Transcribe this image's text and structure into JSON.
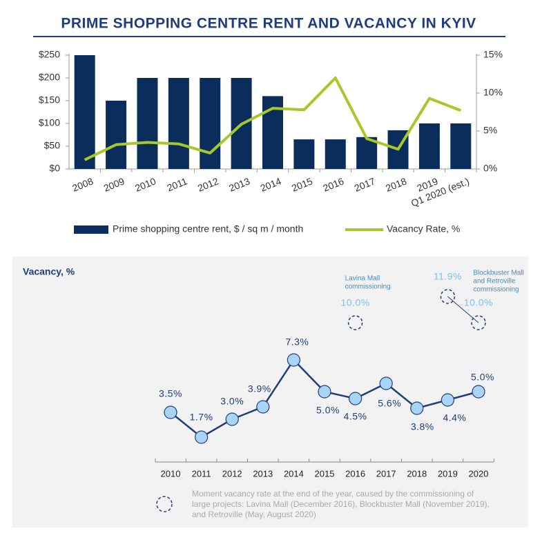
{
  "chart_data": [
    {
      "type": "combo",
      "title": "PRIME SHOPPING CENTRE RENT AND VACANCY IN KYIV",
      "categories": [
        "2008",
        "2009",
        "2010",
        "2011",
        "2012",
        "2013",
        "2014",
        "2015",
        "2016",
        "2017",
        "2018",
        "2019",
        "Q1 2020 (est.)"
      ],
      "series": [
        {
          "name": "Prime shopping centre rent, $ / sq m / month",
          "type": "bar",
          "color": "#0b2d5c",
          "values": [
            250,
            150,
            200,
            200,
            200,
            200,
            160,
            65,
            65,
            70,
            85,
            100,
            100
          ]
        },
        {
          "name": "Vacancy Rate, %",
          "type": "line",
          "axis": "y2",
          "color": "#a6c82b",
          "values": [
            1.2,
            3.2,
            3.5,
            3.3,
            2.1,
            5.9,
            8.0,
            7.8,
            12.0,
            4.0,
            2.6,
            9.3,
            7.7
          ]
        }
      ],
      "ylim": [
        0,
        250
      ],
      "yticks": [
        {
          "value": 0,
          "label": "$0"
        },
        {
          "value": 50,
          "label": "$50"
        },
        {
          "value": 100,
          "label": "$100"
        },
        {
          "value": 150,
          "label": "$150"
        },
        {
          "value": 200,
          "label": "$200"
        },
        {
          "value": 250,
          "label": "$250"
        }
      ],
      "y2lim": [
        0,
        15
      ],
      "y2ticks": [
        {
          "value": 0,
          "label": "0%"
        },
        {
          "value": 5,
          "label": "5%"
        },
        {
          "value": 10,
          "label": "10%"
        },
        {
          "value": 15,
          "label": "15%"
        }
      ],
      "legend": "bottom"
    },
    {
      "type": "line",
      "title": "Vacancy, %",
      "x": [
        2010,
        2011,
        2012,
        2013,
        2014,
        2015,
        2016,
        2017,
        2018,
        2019,
        2020
      ],
      "series": [
        {
          "name": "Vacancy",
          "color": "#1f3d7a",
          "values": [
            3.5,
            1.7,
            3.0,
            3.9,
            7.3,
            5.0,
            4.5,
            5.6,
            3.8,
            4.4,
            5.0
          ],
          "value_labels": [
            "3.5%",
            "1.7%",
            "3.0%",
            "3.9%",
            "7.3%",
            "5.0%",
            "4.5%",
            "5.6%",
            "3.8%",
            "4.4%",
            "5.0%"
          ]
        },
        {
          "name": "Moment vacancy",
          "color": "#7ec0ea",
          "values": [
            null,
            null,
            null,
            null,
            null,
            null,
            10.0,
            null,
            null,
            11.9,
            10.0
          ],
          "value_labels": [
            null,
            null,
            null,
            null,
            null,
            null,
            "10.0%",
            null,
            null,
            "11.9%",
            "10.0%"
          ]
        }
      ],
      "annotations": [
        {
          "x": 2016,
          "lines": [
            "Lavina Mall",
            "commissioning"
          ]
        },
        {
          "x": 2019,
          "lines": [
            "Blockbuster Mall",
            "and Retroville",
            "commissioning"
          ]
        }
      ],
      "note": [
        "Moment vacancy rate at the end of the year, caused by the commissioning of",
        "large projects: Lavina Mall (December 2016), Blockbuster Mall (November 2019),",
        "and Retroville (May, August 2020)"
      ]
    }
  ]
}
